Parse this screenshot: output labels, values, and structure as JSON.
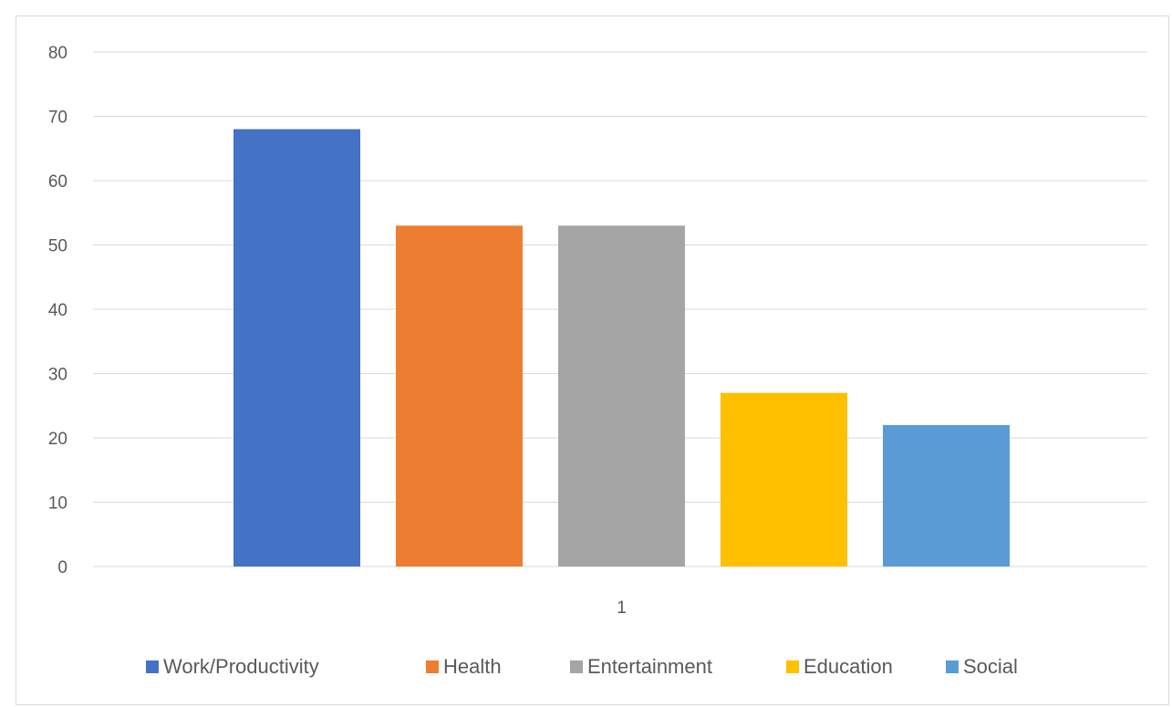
{
  "chart_data": {
    "type": "bar",
    "categories": [
      "1"
    ],
    "series": [
      {
        "name": "Work/Productivity",
        "values": [
          68
        ],
        "color": "#4472c4"
      },
      {
        "name": "Health",
        "values": [
          53
        ],
        "color": "#ed7d31"
      },
      {
        "name": "Entertainment",
        "values": [
          53
        ],
        "color": "#a5a5a5"
      },
      {
        "name": "Education",
        "values": [
          27
        ],
        "color": "#ffc000"
      },
      {
        "name": "Social",
        "values": [
          22
        ],
        "color": "#5b9bd5"
      }
    ],
    "ylim": [
      0,
      80
    ],
    "yticks": [
      0,
      10,
      20,
      30,
      40,
      50,
      60,
      70,
      80
    ],
    "grid": true,
    "legend_position": "bottom",
    "gridline_color": "#d9d9d9",
    "tick_label_color": "#595959"
  }
}
